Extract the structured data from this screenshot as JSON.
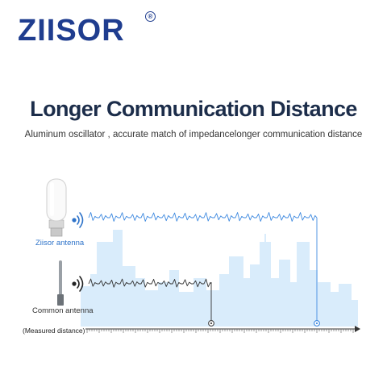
{
  "brand": {
    "logo_text": "ZIISOR",
    "registered_mark": "®"
  },
  "headline": {
    "title": "Longer Communication Distance",
    "subtitle": "Aluminum oscillator , accurate match of impedancelonger communication distance"
  },
  "diagram": {
    "ziisor_antenna_label": "Ziisor antenna",
    "common_antenna_label": "Common antenna",
    "axis_label": "(Measured distance)",
    "colors": {
      "ziisor_signal": "#3f8ae0",
      "common_signal": "#333333",
      "skyline": "#d8ebfb",
      "logo": "#1f3d8f"
    }
  }
}
